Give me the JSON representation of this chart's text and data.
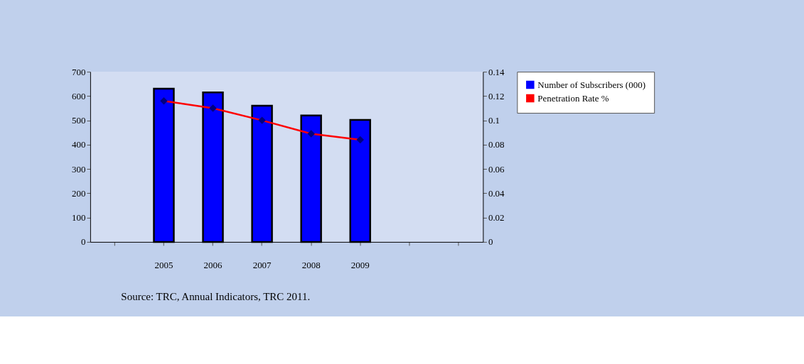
{
  "chart_data": {
    "type": "bar",
    "categories": [
      null,
      "2005",
      "2006",
      "2007",
      "2008",
      "2009",
      null,
      null
    ],
    "series": [
      {
        "name": "Number of Subscribers (000)",
        "color": "#0000ff",
        "values": [
          null,
          630,
          615,
          560,
          520,
          502,
          null,
          null
        ]
      },
      {
        "name": "Penetration Rate %",
        "type": "line",
        "axis": "y2",
        "color": "#ff0000",
        "colors": [
          "#000080",
          "#000080",
          "#000080",
          "#000080",
          "#000080",
          "#000080",
          "#000080",
          "#000080"
        ],
        "marker": "diamond",
        "values": [
          null,
          0.116,
          0.11,
          0.1,
          0.089,
          0.084,
          null,
          null
        ]
      }
    ],
    "ylim": [
      0,
      700
    ],
    "yticks": [
      0,
      100,
      200,
      300,
      400,
      500,
      600,
      700
    ],
    "y2lim": [
      0,
      0.14
    ],
    "y2ticks": [
      0,
      0.02,
      0.04,
      0.06,
      0.08,
      0.1,
      0.12,
      0.14
    ],
    "legend": "right",
    "grid": false,
    "annotations": [
      "Source: TRC, Annual Indicators, TRC  2011."
    ]
  }
}
